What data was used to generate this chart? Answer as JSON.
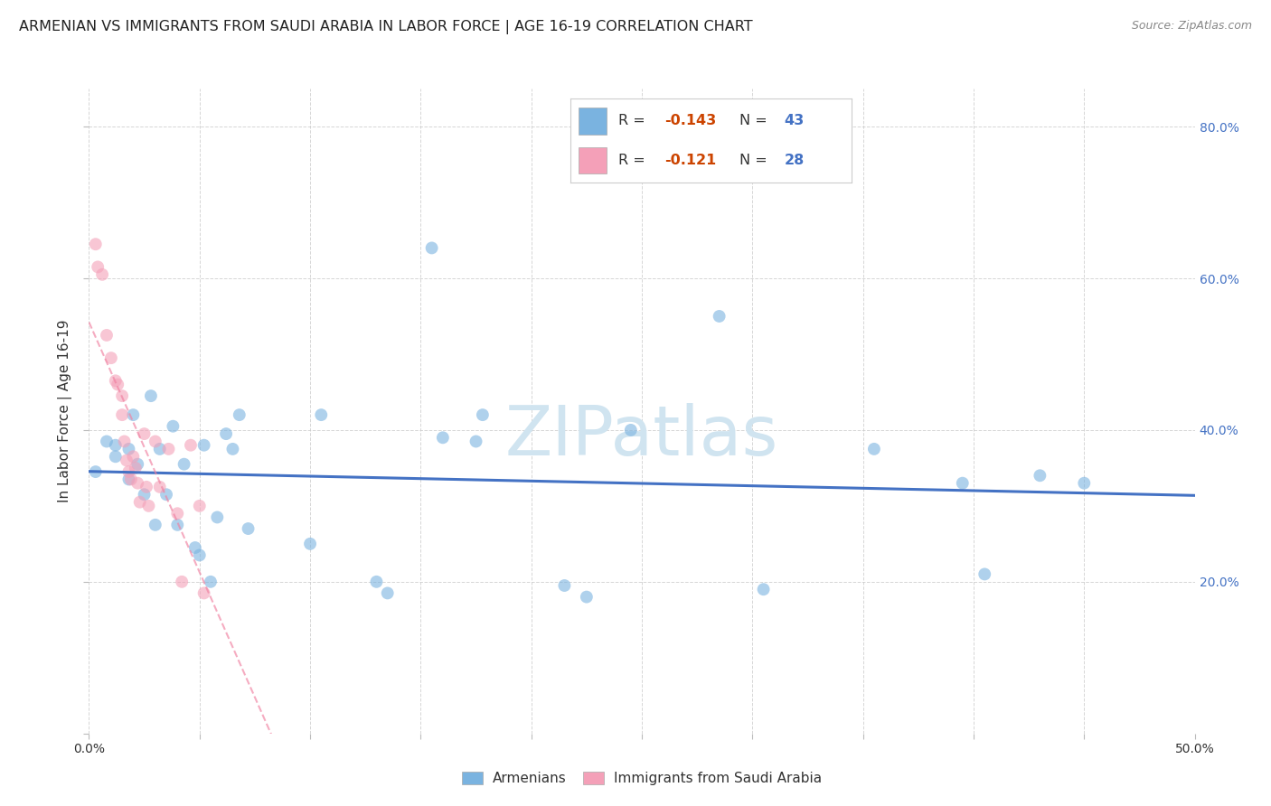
{
  "title": "ARMENIAN VS IMMIGRANTS FROM SAUDI ARABIA IN LABOR FORCE | AGE 16-19 CORRELATION CHART",
  "source": "Source: ZipAtlas.com",
  "ylabel": "In Labor Force | Age 16-19",
  "xlim": [
    0.0,
    0.5
  ],
  "ylim": [
    0.0,
    0.85
  ],
  "x_ticks": [
    0.0,
    0.05,
    0.1,
    0.15,
    0.2,
    0.25,
    0.3,
    0.35,
    0.4,
    0.45,
    0.5
  ],
  "y_ticks": [
    0.0,
    0.2,
    0.4,
    0.6,
    0.8
  ],
  "armenian_scatter_x": [
    0.003,
    0.008,
    0.012,
    0.012,
    0.018,
    0.018,
    0.02,
    0.022,
    0.025,
    0.028,
    0.03,
    0.032,
    0.035,
    0.038,
    0.04,
    0.043,
    0.048,
    0.05,
    0.052,
    0.055,
    0.058,
    0.062,
    0.065,
    0.068,
    0.072,
    0.1,
    0.105,
    0.13,
    0.135,
    0.155,
    0.16,
    0.175,
    0.178,
    0.215,
    0.225,
    0.245,
    0.285,
    0.305,
    0.355,
    0.395,
    0.405,
    0.43,
    0.45
  ],
  "armenian_scatter_y": [
    0.345,
    0.385,
    0.38,
    0.365,
    0.375,
    0.335,
    0.42,
    0.355,
    0.315,
    0.445,
    0.275,
    0.375,
    0.315,
    0.405,
    0.275,
    0.355,
    0.245,
    0.235,
    0.38,
    0.2,
    0.285,
    0.395,
    0.375,
    0.42,
    0.27,
    0.25,
    0.42,
    0.2,
    0.185,
    0.64,
    0.39,
    0.385,
    0.42,
    0.195,
    0.18,
    0.4,
    0.55,
    0.19,
    0.375,
    0.33,
    0.21,
    0.34,
    0.33
  ],
  "saudi_scatter_x": [
    0.003,
    0.004,
    0.006,
    0.008,
    0.01,
    0.012,
    0.013,
    0.015,
    0.015,
    0.016,
    0.017,
    0.018,
    0.019,
    0.02,
    0.021,
    0.022,
    0.023,
    0.025,
    0.026,
    0.027,
    0.03,
    0.032,
    0.036,
    0.04,
    0.042,
    0.046,
    0.05,
    0.052
  ],
  "saudi_scatter_y": [
    0.645,
    0.615,
    0.605,
    0.525,
    0.495,
    0.465,
    0.46,
    0.445,
    0.42,
    0.385,
    0.36,
    0.345,
    0.335,
    0.365,
    0.35,
    0.33,
    0.305,
    0.395,
    0.325,
    0.3,
    0.385,
    0.325,
    0.375,
    0.29,
    0.2,
    0.38,
    0.3,
    0.185
  ],
  "armenian_color": "#7ab3e0",
  "saudi_color": "#f4a0b8",
  "armenian_line_color": "#4472c4",
  "saudi_line_color": "#f080a0",
  "scatter_size": 100,
  "scatter_alpha": 0.6,
  "watermark": "ZIPatlas",
  "watermark_color": "#d0e4f0",
  "watermark_fontsize": 55,
  "background_color": "#ffffff",
  "grid_color": "#cccccc",
  "title_fontsize": 11.5,
  "axis_label_fontsize": 11,
  "tick_fontsize": 10,
  "right_tick_color": "#4472c4",
  "legend_r1": "R = ",
  "legend_v1": "-0.143",
  "legend_n1": "N = ",
  "legend_nv1": "43",
  "legend_r2": "R = ",
  "legend_v2": "-0.121",
  "legend_n2": "N = ",
  "legend_nv2": "28",
  "legend_color_r": "#cc4400",
  "legend_color_n": "#4472c4",
  "legend_color_label": "#333333"
}
